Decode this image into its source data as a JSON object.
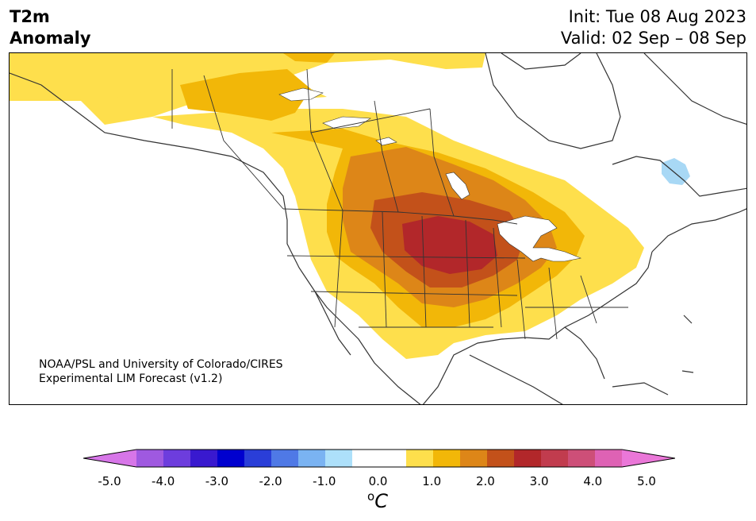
{
  "header": {
    "variable": "T2m",
    "subtitle": "Anomaly",
    "init": "Init: Tue 08 Aug 2023",
    "valid": "Valid: 02 Sep – 08 Sep"
  },
  "credit": {
    "line1": "NOAA/PSL and University of Colorado/CIRES",
    "line2": "Experimental LIM Forecast (v1.2)"
  },
  "map": {
    "region": "North America",
    "projection": "lambert-conformal",
    "features": [
      "coastlines",
      "country-borders",
      "us-state-borders",
      "canada-province-borders",
      "great-lakes"
    ],
    "anomaly_regions": [
      {
        "label": "central US peak",
        "value_c": 3.0,
        "color": "#b2272a"
      },
      {
        "label": "north-central plains",
        "value_c": 2.5,
        "color": "#c3511a"
      },
      {
        "label": "central plains ring",
        "value_c": 2.0,
        "color": "#dd8618"
      },
      {
        "label": "broad warm area",
        "value_c": 1.5,
        "color": "#f2b708"
      },
      {
        "label": "outer warm area",
        "value_c": 1.0,
        "color": "#fedf4c"
      },
      {
        "label": "northern Quebec cool spot",
        "value_c": -1.0,
        "color": "#a8d8f5"
      }
    ]
  },
  "colorbar": {
    "unit_base": "C",
    "unit_sup": "o",
    "levels": [
      -5.0,
      5.0
    ],
    "extend": "both",
    "colors": [
      "#d776e8",
      "#9f59e0",
      "#6d3ddd",
      "#3919cf",
      "#0000cf",
      "#2a3ed8",
      "#4f79e6",
      "#7ab3f2",
      "#ade0fa",
      "#ffffff",
      "#ffffff",
      "#fedf4c",
      "#f2b708",
      "#dd8618",
      "#c3511a",
      "#b2272a",
      "#c13c4e",
      "#cd4f78",
      "#de62b4",
      "#ea77d8"
    ],
    "tick_labels": [
      "-5.0",
      "-4.0",
      "-3.0",
      "-2.0",
      "-1.0",
      "0.0",
      "1.0",
      "2.0",
      "3.0",
      "4.0",
      "5.0"
    ]
  }
}
